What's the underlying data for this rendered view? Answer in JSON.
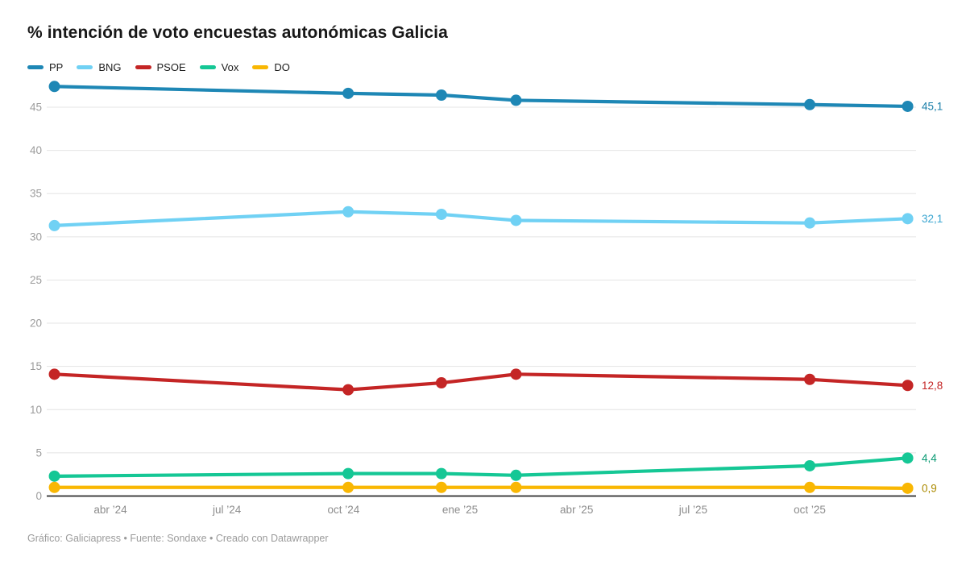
{
  "title": "% intención de voto encuestas autonómicas Galicia",
  "footer": "Gráfico: Galiciapress • Fuente: Sondaxe • Creado con Datawrapper",
  "chart_data": {
    "type": "line",
    "title": "% intención de voto encuestas autonómicas Galicia",
    "xlabel": "",
    "ylabel": "",
    "grid": "horizontal",
    "legend_position": "top-left",
    "x_axis": {
      "range_decimal_year": [
        2024.11,
        2025.98
      ],
      "ticks": [
        {
          "label": "abr ’24",
          "x": 2024.25
        },
        {
          "label": "jul ’24",
          "x": 2024.5
        },
        {
          "label": "oct ’24",
          "x": 2024.75
        },
        {
          "label": "ene ’25",
          "x": 2025.0
        },
        {
          "label": "abr ’25",
          "x": 2025.25
        },
        {
          "label": "jul ’25",
          "x": 2025.5
        },
        {
          "label": "oct ’25",
          "x": 2025.75
        }
      ]
    },
    "y_axis": {
      "range": [
        0,
        48
      ],
      "ticks": [
        0,
        5,
        10,
        15,
        20,
        25,
        30,
        35,
        40,
        45
      ]
    },
    "x": [
      2024.13,
      2024.76,
      2024.96,
      2025.12,
      2025.75,
      2025.96
    ],
    "series": [
      {
        "name": "PP",
        "color": "#1e87b5",
        "label_color": "#1b7fa9",
        "values": [
          47.4,
          46.6,
          46.4,
          45.8,
          45.3,
          45.1
        ],
        "end_label": "45,1"
      },
      {
        "name": "BNG",
        "color": "#70d1f4",
        "label_color": "#3aa5d1",
        "values": [
          31.3,
          32.9,
          32.6,
          31.9,
          31.6,
          32.1
        ],
        "end_label": "32,1"
      },
      {
        "name": "PSOE",
        "color": "#c42525",
        "label_color": "#c42525",
        "values": [
          14.1,
          12.3,
          13.1,
          14.1,
          13.5,
          12.8
        ],
        "end_label": "12,8"
      },
      {
        "name": "Vox",
        "color": "#15c795",
        "label_color": "#0c9b74",
        "values": [
          2.3,
          2.6,
          2.6,
          2.4,
          3.5,
          4.4
        ],
        "end_label": "4,4"
      },
      {
        "name": "DO",
        "color": "#f9b703",
        "label_color": "#ab8a00",
        "values": [
          1.0,
          1.0,
          1.0,
          1.0,
          1.0,
          0.9
        ],
        "end_label": "0,9"
      }
    ],
    "style": {
      "grid_color": "#e4e4e4",
      "axis_color": "#2b2b2b",
      "y_tick_color": "#9c9c9c",
      "x_tick_color": "#8c8c8c",
      "line_width": 4.2,
      "point_radius": 7
    }
  }
}
